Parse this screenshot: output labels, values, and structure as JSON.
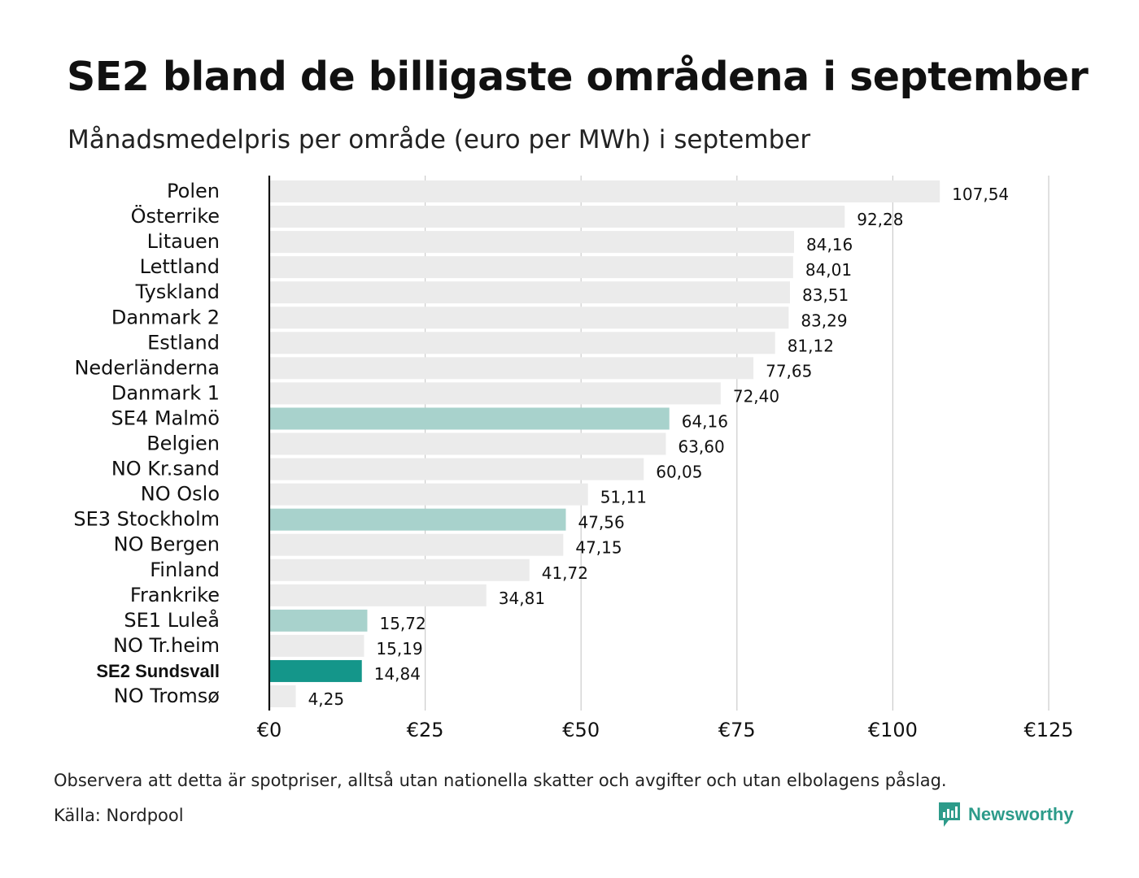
{
  "title": "SE2 bland de billigaste områdena i september",
  "subtitle": "Månadsmedelpris per område (euro per MWh) i september",
  "note": "Observera att detta är spotpriser, alltså utan nationella skatter och avgifter och utan elbolagens påslag.",
  "source": "Källa: Nordpool",
  "brand": {
    "name": "Newsworthy",
    "icon": "newsworthy-logo-icon"
  },
  "colors": {
    "bar_default": "#ebebeb",
    "bar_se": "#a8d2cc",
    "bar_highlight": "#14968a",
    "grid": "#cccccc",
    "axis": "#111111",
    "brand": "#2d9b8a"
  },
  "chart_data": {
    "type": "bar",
    "orientation": "horizontal",
    "xlim": [
      0,
      125
    ],
    "ticks": [
      0,
      25,
      50,
      75,
      100,
      125
    ],
    "tick_labels": [
      "€0",
      "€25",
      "€50",
      "€75",
      "€100",
      "€125"
    ],
    "grid": true,
    "categories": [
      "Polen",
      "Österrike",
      "Litauen",
      "Lettland",
      "Tyskland",
      "Danmark  2",
      "Estland",
      "Nederländerna",
      "Danmark  1",
      "SE4  Malmö",
      "Belgien",
      "NO Kr.sand",
      "NO Oslo",
      "SE3  Stockholm",
      "NO Bergen",
      "Finland",
      "Frankrike",
      "SE1  Luleå",
      "NO Tr.heim",
      "SE2 Sundsvall",
      "NO Tromsø"
    ],
    "values": [
      107.54,
      92.28,
      84.16,
      84.01,
      83.51,
      83.29,
      81.12,
      77.65,
      72.4,
      64.16,
      63.6,
      60.05,
      51.11,
      47.56,
      47.15,
      41.72,
      34.81,
      15.72,
      15.19,
      14.84,
      4.25
    ],
    "value_labels": [
      "107,54",
      "92,28",
      "84,16",
      "84,01",
      "83,51",
      "83,29",
      "81,12",
      "77,65",
      "72,40",
      "64,16",
      "63,60",
      "60,05",
      "51,11",
      "47,56",
      "47,15",
      "41,72",
      "34,81",
      "15,72",
      "15,19",
      "14,84",
      "4,25"
    ],
    "groups": [
      "other",
      "other",
      "other",
      "other",
      "other",
      "other",
      "other",
      "other",
      "other",
      "se",
      "other",
      "other",
      "other",
      "se",
      "other",
      "other",
      "other",
      "se",
      "other",
      "highlight",
      "other"
    ]
  }
}
